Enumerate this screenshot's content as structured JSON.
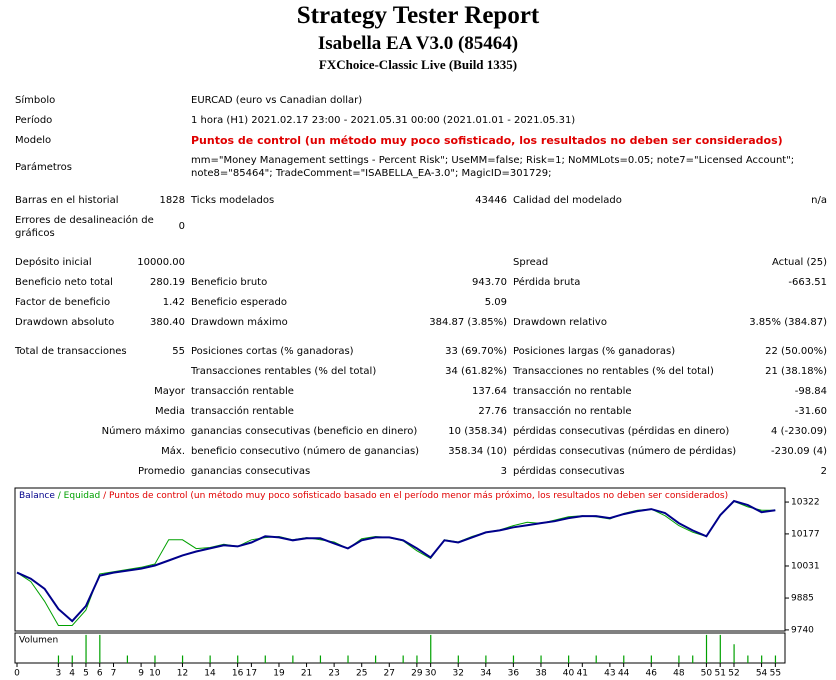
{
  "header": {
    "title": "Strategy Tester Report",
    "subtitle": "Isabella EA V3.0 (85464)",
    "build": "FXChoice-Classic Live (Build 1335)"
  },
  "info": [
    {
      "label": "Símbolo",
      "value": [
        "EURCAD (euro vs Canadian dollar)"
      ]
    },
    {
      "label": "Período",
      "value": [
        "1 hora (H1) 2021.02.17 23:00 - 2021.05.31 00:00 (2021.01.01 - 2021.05.31)"
      ]
    },
    {
      "label": "Modelo",
      "value": [
        "Puntos de control (un método muy poco sofisticado, los resultados no deben ser considerados)"
      ]
    },
    {
      "label": "Parámetros",
      "value": [
        "mm=\"Money Management settings - Percent Risk\"; UseMM=false; Risk=1; NoMMLots=0.05; note7=\"Licensed Account\";",
        "note8=\"85464\"; TradeComment=\"ISABELLA_EA-3.0\"; MagicID=301729;"
      ]
    }
  ],
  "rows": [
    [
      "Barras en el historial",
      "1828",
      "Ticks modelados",
      "43446",
      "Calidad del modelado",
      "n/a"
    ],
    [
      "Errores de desalineación de gráficos",
      "0",
      null,
      null,
      null,
      null
    ],
    [
      "Depósito inicial",
      "10000.00",
      null,
      null,
      "Spread",
      "Actual (25)"
    ],
    [
      "Beneficio neto total",
      "280.19",
      "Beneficio bruto",
      "943.70",
      "Pérdida bruta",
      "-663.51"
    ],
    [
      "Factor de beneficio",
      "1.42",
      "Beneficio esperado",
      "5.09",
      null,
      null
    ],
    [
      "Drawdown absoluto",
      "380.40",
      "Drawdown máximo",
      "384.87 (3.85%)",
      "Drawdown relativo",
      "3.85% (384.87)"
    ],
    [
      "Total de transacciones",
      "55",
      "Posiciones cortas (% ganadoras)",
      "33 (69.70%)",
      "Posiciones largas (% ganadoras)",
      "22 (50.00%)"
    ],
    [
      null,
      null,
      "Transacciones rentables (% del total)",
      "34 (61.82%)",
      "Transacciones no rentables (% del total)",
      "21 (38.18%)"
    ],
    [
      null,
      "Mayor",
      "transacción rentable",
      "137.64",
      "transacción no rentable",
      "-98.84"
    ],
    [
      null,
      "Media",
      "transacción rentable",
      "27.76",
      "transacción no rentable",
      "-31.60"
    ],
    [
      null,
      "Número máximo",
      "ganancias consecutivas (beneficio en dinero)",
      "10 (358.34)",
      "pérdidas consecutivas (pérdidas en dinero)",
      "4 (-230.09)"
    ],
    [
      null,
      "Máx.",
      "beneficio consecutivo (número de ganancias)",
      "358.34 (10)",
      "pérdidas consecutivas (número de pérdidas)",
      "-230.09 (4)"
    ],
    [
      null,
      "Promedio",
      "ganancias consecutivas",
      "3",
      "pérdidas consecutivas",
      "2"
    ]
  ],
  "chart_data": {
    "type": "line",
    "legend": [
      "Balance",
      " / ",
      "Equidad",
      " / Puntos de control (un método muy poco sofisticado basado en el período menor más próximo, los resultados no deben ser considerados)"
    ],
    "volume_label": "Volumen",
    "x": [
      0,
      1,
      2,
      3,
      4,
      5,
      6,
      7,
      8,
      9,
      10,
      11,
      12,
      13,
      14,
      15,
      16,
      17,
      18,
      19,
      20,
      21,
      22,
      23,
      24,
      25,
      26,
      27,
      28,
      29,
      30,
      31,
      32,
      33,
      34,
      35,
      36,
      37,
      38,
      39,
      40,
      41,
      42,
      43,
      44,
      45,
      46,
      47,
      48,
      49,
      50,
      51,
      52,
      53,
      54,
      55
    ],
    "series": [
      {
        "name": "Balance",
        "color": "#00008b",
        "values": [
          10001,
          9973,
          9927,
          9835,
          9780,
          9849,
          9987,
          10001,
          10010,
          10019,
          10033,
          10056,
          10079,
          10097,
          10111,
          10125,
          10120,
          10138,
          10166,
          10161,
          10148,
          10157,
          10157,
          10134,
          10111,
          10148,
          10161,
          10161,
          10148,
          10111,
          10070,
          10148,
          10138,
          10161,
          10184,
          10193,
          10207,
          10216,
          10226,
          10235,
          10249,
          10258,
          10258,
          10249,
          10267,
          10281,
          10290,
          10272,
          10226,
          10193,
          10166,
          10262,
          10327,
          10308,
          10276,
          10285
        ]
      },
      {
        "name": "Equidad",
        "color": "#00a000",
        "values": [
          10001,
          9960,
          9870,
          9760,
          9760,
          9830,
          9995,
          10005,
          10015,
          10025,
          10040,
          10150,
          10150,
          10110,
          10115,
          10130,
          10120,
          10150,
          10160,
          10165,
          10150,
          10160,
          10150,
          10140,
          10110,
          10155,
          10165,
          10160,
          10145,
          10100,
          10065,
          10150,
          10140,
          10165,
          10185,
          10195,
          10215,
          10230,
          10225,
          10240,
          10255,
          10260,
          10255,
          10245,
          10270,
          10285,
          10290,
          10260,
          10215,
          10185,
          10165,
          10265,
          10325,
          10300,
          10285,
          10285
        ]
      }
    ],
    "volume": [
      0,
      0,
      0,
      0.04,
      0.04,
      0.15,
      0.15,
      0,
      0.04,
      0,
      0.04,
      0,
      0.04,
      0,
      0.04,
      0,
      0.04,
      0,
      0.04,
      0,
      0.04,
      0,
      0.04,
      0,
      0.04,
      0,
      0.04,
      0,
      0.04,
      0.04,
      0.15,
      0,
      0.04,
      0,
      0.04,
      0,
      0.04,
      0,
      0.04,
      0,
      0.04,
      0,
      0.04,
      0,
      0.04,
      0,
      0.04,
      0,
      0.04,
      0.04,
      0.15,
      0.15,
      0.1,
      0.04,
      0.04,
      0.04
    ],
    "volume_ylim": [
      0,
      0.16
    ],
    "xlim": [
      0,
      55.7
    ],
    "xticks": [
      0,
      3,
      4,
      5,
      6,
      7,
      9,
      10,
      12,
      14,
      16,
      17,
      19,
      21,
      23,
      25,
      27,
      29,
      30,
      32,
      34,
      36,
      38,
      40,
      41,
      43,
      44,
      46,
      48,
      50,
      51,
      52,
      54,
      55
    ],
    "ylim": [
      9735,
      10386
    ],
    "yticks": [
      10322,
      10177,
      10031,
      9885,
      9740
    ],
    "legend_colors": [
      "#00008b",
      "#00a000",
      "#00a000",
      "#e00000"
    ],
    "volume_color": "#00a000"
  }
}
